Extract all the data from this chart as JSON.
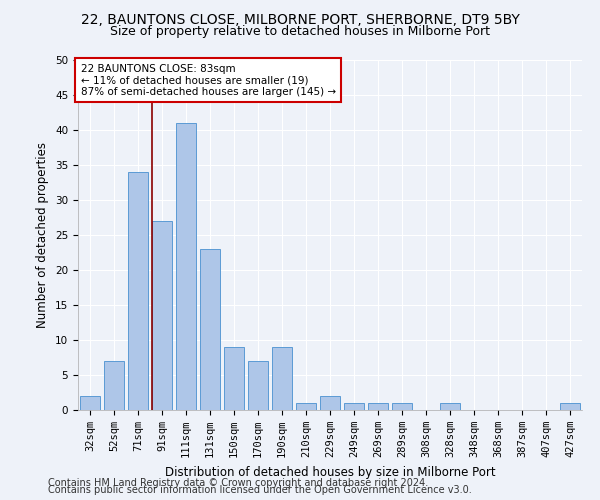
{
  "title1": "22, BAUNTONS CLOSE, MILBORNE PORT, SHERBORNE, DT9 5BY",
  "title2": "Size of property relative to detached houses in Milborne Port",
  "xlabel": "Distribution of detached houses by size in Milborne Port",
  "ylabel": "Number of detached properties",
  "categories": [
    "32sqm",
    "52sqm",
    "71sqm",
    "91sqm",
    "111sqm",
    "131sqm",
    "150sqm",
    "170sqm",
    "190sqm",
    "210sqm",
    "229sqm",
    "249sqm",
    "269sqm",
    "289sqm",
    "308sqm",
    "328sqm",
    "348sqm",
    "368sqm",
    "387sqm",
    "407sqm",
    "427sqm"
  ],
  "values": [
    2,
    7,
    34,
    27,
    41,
    23,
    9,
    7,
    9,
    1,
    2,
    1,
    1,
    1,
    0,
    1,
    0,
    0,
    0,
    0,
    1
  ],
  "bar_color": "#aec6e8",
  "bar_edge_color": "#5b9bd5",
  "vline_x": 2.6,
  "vline_color": "#8b0000",
  "annotation_text": "22 BAUNTONS CLOSE: 83sqm\n← 11% of detached houses are smaller (19)\n87% of semi-detached houses are larger (145) →",
  "annotation_box_color": "white",
  "annotation_box_edge": "#cc0000",
  "ylim": [
    0,
    50
  ],
  "yticks": [
    0,
    5,
    10,
    15,
    20,
    25,
    30,
    35,
    40,
    45,
    50
  ],
  "footer1": "Contains HM Land Registry data © Crown copyright and database right 2024.",
  "footer2": "Contains public sector information licensed under the Open Government Licence v3.0.",
  "bg_color": "#eef2f9",
  "title_fontsize": 10,
  "subtitle_fontsize": 9,
  "axis_label_fontsize": 8.5,
  "tick_fontsize": 7.5,
  "footer_fontsize": 7
}
